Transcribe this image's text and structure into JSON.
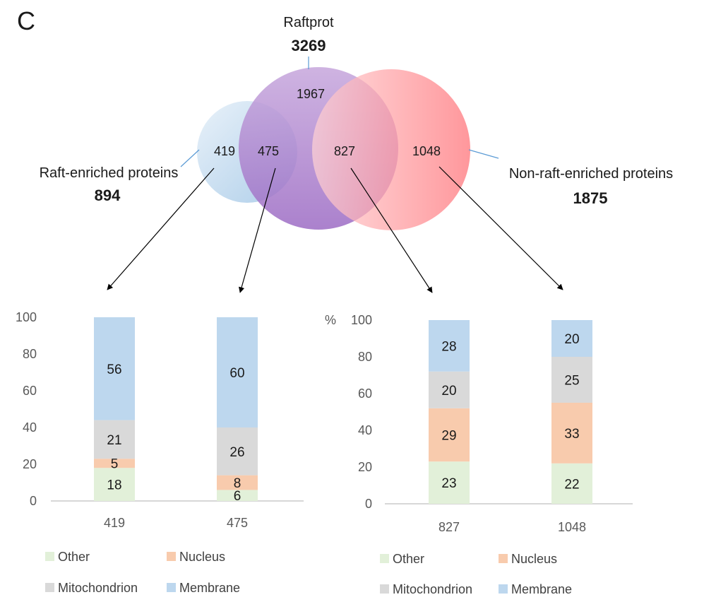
{
  "panel_label": "C",
  "venn": {
    "sets": [
      {
        "name": "Raftprot",
        "total": "3269"
      },
      {
        "name": "Raft-enriched proteins",
        "total": "894"
      },
      {
        "name": "Non-raft-enriched proteins",
        "total": "1875"
      }
    ],
    "regions": {
      "raftprot_only": "1967",
      "raft_enriched_only": "419",
      "raft_enriched_and_raftprot": "475",
      "nonraft_and_raftprot": "827",
      "nonraft_only": "1048"
    },
    "colors": {
      "raft_enriched": "#a9cbe8",
      "raftprot": "#9c6bc4",
      "nonraft": "#ff8a8e"
    }
  },
  "colors": {
    "Other": "#e2f0d9",
    "Nucleus": "#f8cbad",
    "Mitochondrion": "#d9d9d9",
    "Membrane": "#bdd7ee",
    "axis": "#bfbfbf",
    "arrow": "#000000",
    "leader": "#5b9bd5"
  },
  "chart_data": [
    {
      "type": "bar",
      "stacked": true,
      "categories": [
        "419",
        "475"
      ],
      "series": [
        {
          "name": "Other",
          "values": [
            18,
            6
          ]
        },
        {
          "name": "Nucleus",
          "values": [
            5,
            8
          ]
        },
        {
          "name": "Mitochondrion",
          "values": [
            21,
            26
          ]
        },
        {
          "name": "Membrane",
          "values": [
            56,
            60
          ]
        }
      ],
      "ylabel": "",
      "ylim": [
        0,
        100
      ],
      "yticks": [
        "0",
        "20",
        "40",
        "60",
        "80",
        "100"
      ],
      "legend": [
        "Other",
        "Nucleus",
        "Mitochondrion",
        "Membrane"
      ],
      "legend_placement": "bottom",
      "grid": false
    },
    {
      "type": "bar",
      "stacked": true,
      "categories": [
        "827",
        "1048"
      ],
      "series": [
        {
          "name": "Other",
          "values": [
            23,
            22
          ]
        },
        {
          "name": "Nucleus",
          "values": [
            29,
            33
          ]
        },
        {
          "name": "Mitochondrion",
          "values": [
            20,
            25
          ]
        },
        {
          "name": "Membrane",
          "values": [
            28,
            20
          ]
        }
      ],
      "ylabel": "%",
      "ylim": [
        0,
        100
      ],
      "yticks": [
        "0",
        "20",
        "40",
        "60",
        "80",
        "100"
      ],
      "legend": [
        "Other",
        "Nucleus",
        "Mitochondrion",
        "Membrane"
      ],
      "legend_placement": "bottom",
      "grid": false
    }
  ]
}
